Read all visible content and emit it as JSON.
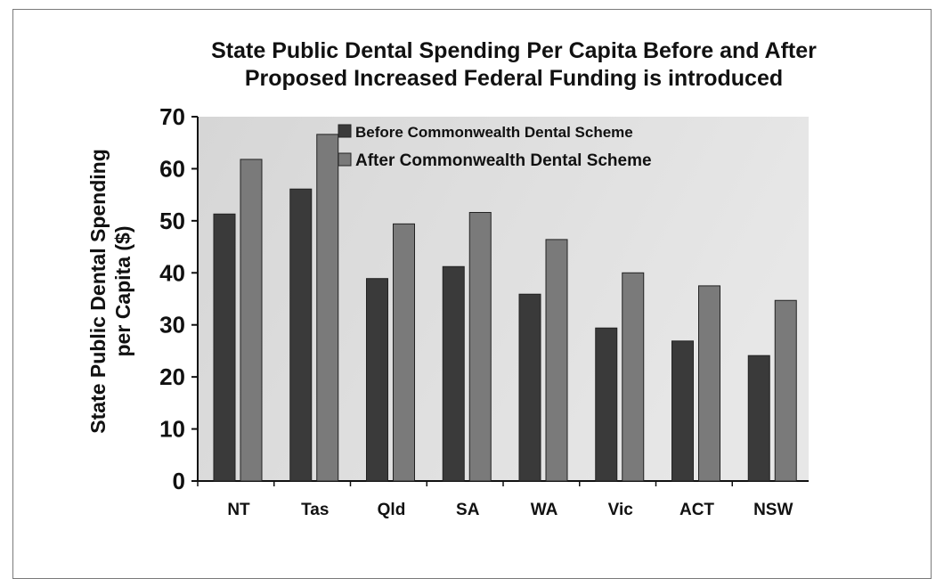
{
  "chart_data": {
    "type": "bar",
    "title": [
      "State Public Dental Spending Per Capita Before and After",
      "Proposed Increased Federal Funding is introduced"
    ],
    "ylabel": [
      "State Public Dental Spending",
      "per Capita ($)"
    ],
    "xlabel": "",
    "categories": [
      "NT",
      "Tas",
      "Qld",
      "SA",
      "WA",
      "Vic",
      "ACT",
      "NSW"
    ],
    "series": [
      {
        "name": "Before Commonwealth Dental Scheme",
        "color": "#3a3a3a",
        "values": [
          51.3,
          56.1,
          38.9,
          41.2,
          35.9,
          29.4,
          26.9,
          24.1
        ]
      },
      {
        "name": "After Commonwealth Dental Scheme",
        "color": "#7a7a7a",
        "values": [
          61.8,
          66.6,
          49.4,
          51.6,
          46.4,
          40.0,
          37.5,
          34.7
        ]
      }
    ],
    "ylim": [
      0,
      70
    ],
    "yticks": [
      0,
      10,
      20,
      30,
      40,
      50,
      60,
      70
    ],
    "grid": false,
    "legend_position": "top-center"
  }
}
